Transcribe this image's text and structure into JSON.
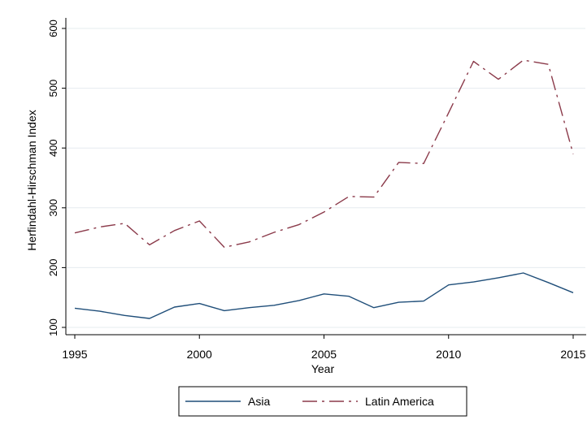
{
  "chart_data": {
    "type": "line",
    "title": "",
    "xlabel": "Year",
    "ylabel": "Herfindahl-Hirschman Index",
    "xlim": [
      1995,
      2015
    ],
    "ylim": [
      100,
      600
    ],
    "x_ticks": [
      "1995",
      "2000",
      "2005",
      "2010",
      "2015"
    ],
    "y_ticks": [
      "100",
      "200",
      "300",
      "400",
      "500",
      "600"
    ],
    "grid": true,
    "legend_position": "bottom",
    "x": [
      1995,
      1996,
      1997,
      1998,
      1999,
      2000,
      2001,
      2002,
      2003,
      2004,
      2005,
      2006,
      2007,
      2008,
      2009,
      2010,
      2011,
      2012,
      2013,
      2014,
      2015
    ],
    "series": [
      {
        "name": "Asia",
        "color": "#1f4e79",
        "dash": "solid",
        "values": [
          132,
          127,
          120,
          115,
          134,
          140,
          128,
          133,
          137,
          145,
          156,
          152,
          133,
          142,
          144,
          171,
          176,
          183,
          191,
          175,
          158
        ]
      },
      {
        "name": "Latin America",
        "color": "#8b3a4a",
        "dash": "dashdot",
        "values": [
          258,
          268,
          274,
          238,
          262,
          278,
          234,
          243,
          259,
          272,
          293,
          319,
          318,
          376,
          374,
          459,
          545,
          515,
          547,
          540,
          390
        ]
      }
    ]
  }
}
